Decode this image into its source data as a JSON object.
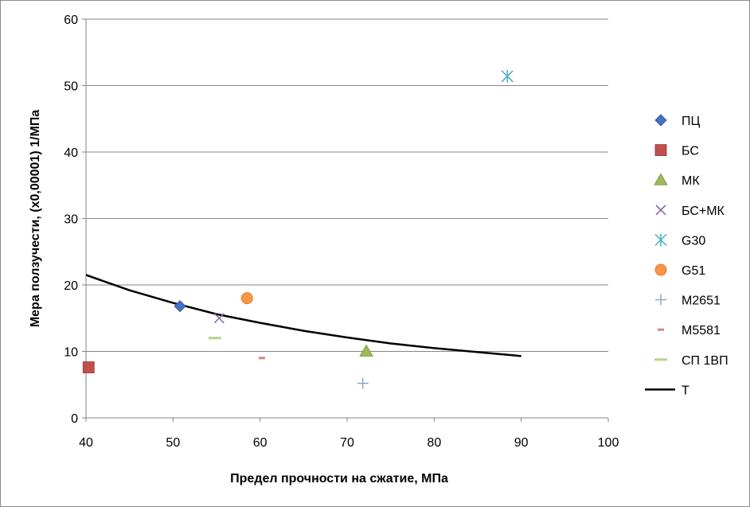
{
  "chart_data": {
    "type": "scatter",
    "title": "",
    "xlabel": "Предел прочности на сжатие, МПа",
    "ylabel": "Мера ползучести, (x0,00001) 1/МПа",
    "xlim": [
      40,
      100
    ],
    "ylim": [
      0,
      60
    ],
    "x_ticks": [
      "40",
      "50",
      "60",
      "70",
      "80",
      "90",
      "100"
    ],
    "y_ticks": [
      "0",
      "10",
      "20",
      "30",
      "40",
      "50",
      "60"
    ],
    "grid": "horizontal",
    "legend_position": "right",
    "series": [
      {
        "name": "ПЦ",
        "marker": "diamond",
        "color": "#4472C4",
        "points": [
          [
            50.8,
            16.8
          ]
        ]
      },
      {
        "name": "БС",
        "marker": "square",
        "color": "#C0504D",
        "points": [
          [
            40.3,
            7.6
          ]
        ]
      },
      {
        "name": "МК",
        "marker": "triangle",
        "color": "#9BBB59",
        "points": [
          [
            72.2,
            10.0
          ]
        ]
      },
      {
        "name": "БС+МК",
        "marker": "x",
        "color": "#8064A2",
        "points": [
          [
            55.3,
            15.0
          ]
        ]
      },
      {
        "name": "G30",
        "marker": "star",
        "color": "#4BACC6",
        "points": [
          [
            88.4,
            51.4
          ]
        ]
      },
      {
        "name": "G51",
        "marker": "circle",
        "color": "#F79646",
        "points": [
          [
            58.5,
            18.0
          ]
        ]
      },
      {
        "name": "M2651",
        "marker": "plus",
        "color": "#7F9FC8",
        "points": [
          [
            71.8,
            5.2
          ]
        ]
      },
      {
        "name": "M5581",
        "marker": "short-dash",
        "color": "#D9817E",
        "points": [
          [
            60.2,
            9.0
          ]
        ]
      },
      {
        "name": "СП 1ВП",
        "marker": "long-dash",
        "color": "#B7D28C",
        "points": [
          [
            54.8,
            12.0
          ]
        ]
      },
      {
        "name": "T",
        "marker": "line",
        "color": "#000000",
        "points": [
          [
            40,
            21.5
          ],
          [
            45,
            19.2
          ],
          [
            50,
            17.3
          ],
          [
            55,
            15.6
          ],
          [
            60,
            14.3
          ],
          [
            65,
            13.1
          ],
          [
            70,
            12.1
          ],
          [
            75,
            11.2
          ],
          [
            80,
            10.5
          ],
          [
            85,
            9.9
          ],
          [
            90,
            9.3
          ]
        ]
      }
    ]
  }
}
